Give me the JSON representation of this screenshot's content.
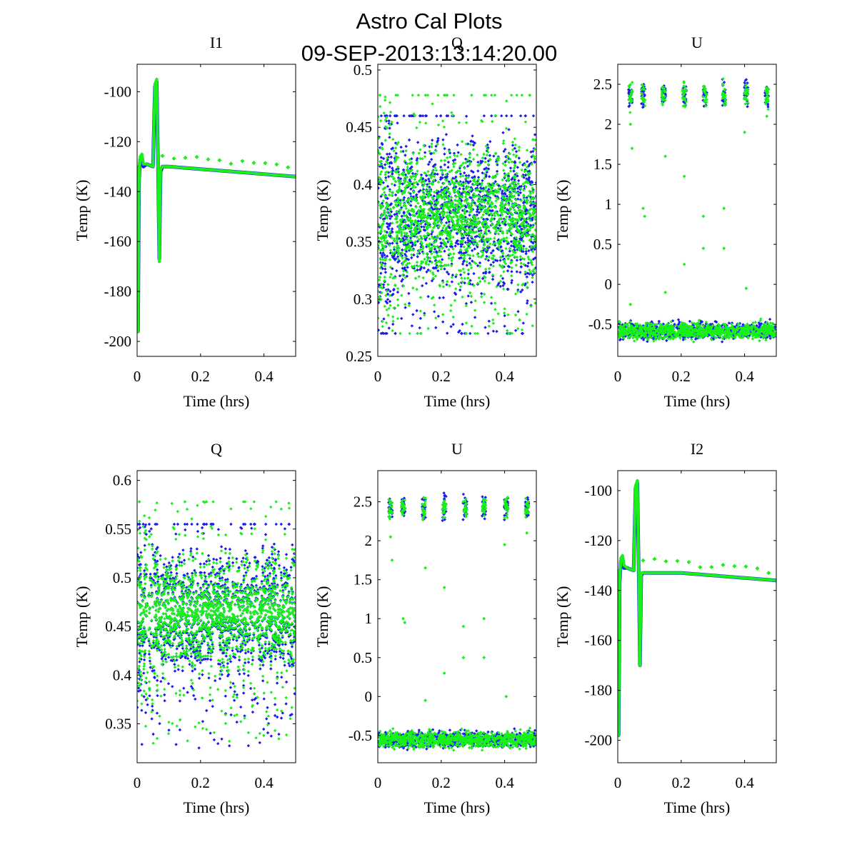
{
  "figure": {
    "title_line1": "Astro Cal Plots",
    "title_line2": "09-SEP-2013:13:14:20.00"
  },
  "colors": {
    "series_a": "#1b1bf0",
    "series_b": "#19f019",
    "axes": "#000000",
    "background": "#ffffff"
  },
  "chart_data": [
    {
      "id": "I1",
      "type": "scatter",
      "title": "I1",
      "xlabel": "Time (hrs)",
      "ylabel": "Temp (K)",
      "xlim": [
        0,
        0.5
      ],
      "ylim": [
        -206,
        -89
      ],
      "xticks": [
        0,
        0.2,
        0.4
      ],
      "xtick_labels": [
        "0",
        "0.2",
        "0.4"
      ],
      "yticks": [
        -200,
        -180,
        -160,
        -140,
        -120,
        -100
      ],
      "ytick_labels": [
        "-200",
        "-180",
        "-160",
        "-140",
        "-120",
        "-100"
      ],
      "grid": false,
      "kind": "thermal",
      "series": [
        {
          "color": "#1b1bf0",
          "x": [
            0.0,
            0.003,
            0.006,
            0.01,
            0.015,
            0.02,
            0.03,
            0.05,
            0.056,
            0.062,
            0.066,
            0.07,
            0.074,
            0.08,
            0.1,
            0.2,
            0.3,
            0.4,
            0.5
          ],
          "y": [
            -130,
            -196,
            -135,
            -127,
            -126,
            -130,
            -129,
            -130,
            -98,
            -96,
            -130,
            -167,
            -132,
            -130,
            -130,
            -131,
            -132,
            -133,
            -134
          ]
        },
        {
          "color": "#19f019",
          "x": [
            0.0,
            0.003,
            0.006,
            0.01,
            0.015,
            0.02,
            0.03,
            0.05,
            0.056,
            0.062,
            0.066,
            0.07,
            0.074,
            0.08,
            0.1,
            0.2,
            0.3,
            0.4,
            0.5
          ],
          "y": [
            -130,
            -196,
            -135,
            -126,
            -125,
            -129,
            -129,
            -130,
            -97,
            -95,
            -130,
            -168,
            -131,
            -130,
            -130,
            -131,
            -132,
            -133,
            -134
          ]
        }
      ]
    },
    {
      "id": "Q-top",
      "type": "scatter",
      "title": "Q",
      "xlabel": "Time (hrs)",
      "ylabel": "Temp (K)",
      "xlim": [
        0,
        0.5
      ],
      "ylim": [
        0.25,
        0.505
      ],
      "xticks": [
        0,
        0.2,
        0.4
      ],
      "xtick_labels": [
        "0",
        "0.2",
        "0.4"
      ],
      "yticks": [
        0.25,
        0.3,
        0.35,
        0.4,
        0.45,
        0.5
      ],
      "ytick_labels": [
        "0.25",
        "0.3",
        "0.35",
        "0.4",
        "0.45",
        "0.5"
      ],
      "grid": false,
      "kind": "noise",
      "series": [
        {
          "color": "#1b1bf0",
          "center": 0.375,
          "spread": 0.03,
          "min": 0.27,
          "max": 0.46
        },
        {
          "color": "#19f019",
          "center": 0.375,
          "spread": 0.028,
          "min": 0.27,
          "max": 0.478
        }
      ]
    },
    {
      "id": "U-top",
      "type": "scatter",
      "title": "U",
      "xlabel": "Time (hrs)",
      "ylabel": "Temp (K)",
      "xlim": [
        0,
        0.5
      ],
      "ylim": [
        -0.9,
        2.75
      ],
      "xticks": [
        0,
        0.2,
        0.4
      ],
      "xtick_labels": [
        "0",
        "0.2",
        "0.4"
      ],
      "yticks": [
        -0.5,
        0,
        0.5,
        1,
        1.5,
        2,
        2.5
      ],
      "ytick_labels": [
        "-0.5",
        "0",
        "0.5",
        "1",
        "1.5",
        "2",
        "2.5"
      ],
      "grid": false,
      "kind": "bimodal",
      "baseline": -0.58,
      "cluster_x": [
        0.04,
        0.08,
        0.145,
        0.21,
        0.275,
        0.335,
        0.405,
        0.47
      ],
      "cluster_y": 2.37,
      "outliers_x": [
        0.04,
        0.045,
        0.08,
        0.085,
        0.15,
        0.15,
        0.21,
        0.21,
        0.27,
        0.27,
        0.335,
        0.335,
        0.4,
        0.405,
        0.47,
        0.04
      ],
      "outliers_y": [
        2.0,
        1.7,
        0.95,
        0.85,
        1.6,
        -0.1,
        1.35,
        0.25,
        0.85,
        0.45,
        0.95,
        0.45,
        1.9,
        -0.05,
        2.1,
        -0.25
      ],
      "series": [
        {
          "color": "#1b1bf0"
        },
        {
          "color": "#19f019"
        }
      ]
    },
    {
      "id": "Q-bottom",
      "type": "scatter",
      "title": "Q",
      "xlabel": "Time (hrs)",
      "ylabel": "Temp (K)",
      "xlim": [
        0,
        0.5
      ],
      "ylim": [
        0.31,
        0.61
      ],
      "xticks": [
        0,
        0.2,
        0.4
      ],
      "xtick_labels": [
        "0",
        "0.2",
        "0.4"
      ],
      "yticks": [
        0.35,
        0.4,
        0.45,
        0.5,
        0.55,
        0.6
      ],
      "ytick_labels": [
        "0.35",
        "0.4",
        "0.45",
        "0.5",
        "0.55",
        "0.6"
      ],
      "grid": false,
      "kind": "noise",
      "series": [
        {
          "color": "#1b1bf0",
          "center": 0.465,
          "spread": 0.03,
          "min": 0.325,
          "max": 0.555
        },
        {
          "color": "#19f019",
          "center": 0.465,
          "spread": 0.028,
          "min": 0.33,
          "max": 0.578
        }
      ]
    },
    {
      "id": "U-bottom",
      "type": "scatter",
      "title": "U",
      "xlabel": "Time (hrs)",
      "ylabel": "Temp (K)",
      "xlim": [
        0,
        0.5
      ],
      "ylim": [
        -0.85,
        2.9
      ],
      "xticks": [
        0,
        0.2,
        0.4
      ],
      "xtick_labels": [
        "0",
        "0.2",
        "0.4"
      ],
      "yticks": [
        -0.5,
        0,
        0.5,
        1,
        1.5,
        2,
        2.5
      ],
      "ytick_labels": [
        "-0.5",
        "0",
        "0.5",
        "1",
        "1.5",
        "2",
        "2.5"
      ],
      "grid": false,
      "kind": "bimodal",
      "baseline": -0.55,
      "cluster_x": [
        0.04,
        0.08,
        0.145,
        0.21,
        0.275,
        0.335,
        0.405,
        0.47
      ],
      "cluster_y": 2.42,
      "outliers_x": [
        0.04,
        0.045,
        0.08,
        0.085,
        0.15,
        0.15,
        0.21,
        0.21,
        0.27,
        0.27,
        0.335,
        0.335,
        0.4,
        0.405,
        0.47
      ],
      "outliers_y": [
        2.05,
        1.75,
        1.0,
        0.95,
        1.65,
        -0.05,
        1.4,
        0.3,
        0.9,
        0.5,
        1.0,
        0.5,
        1.95,
        0.0,
        2.1
      ],
      "series": [
        {
          "color": "#1b1bf0"
        },
        {
          "color": "#19f019"
        }
      ]
    },
    {
      "id": "I2",
      "type": "scatter",
      "title": "I2",
      "xlabel": "Time (hrs)",
      "ylabel": "Temp (K)",
      "xlim": [
        0,
        0.5
      ],
      "ylim": [
        -209,
        -92
      ],
      "xticks": [
        0,
        0.2,
        0.4
      ],
      "xtick_labels": [
        "0",
        "0.2",
        "0.4"
      ],
      "yticks": [
        -200,
        -180,
        -160,
        -140,
        -120,
        -100
      ],
      "ytick_labels": [
        "-200",
        "-180",
        "-160",
        "-140",
        "-120",
        "-100"
      ],
      "grid": false,
      "kind": "thermal",
      "series": [
        {
          "color": "#1b1bf0",
          "x": [
            0.0,
            0.003,
            0.006,
            0.01,
            0.015,
            0.02,
            0.03,
            0.05,
            0.056,
            0.062,
            0.066,
            0.07,
            0.074,
            0.08,
            0.1,
            0.2,
            0.3,
            0.4,
            0.5
          ],
          "y": [
            -132,
            -198,
            -137,
            -128,
            -127,
            -131,
            -131,
            -132,
            -99,
            -97,
            -132,
            -170,
            -134,
            -133,
            -133,
            -133,
            -134,
            -135,
            -136
          ]
        },
        {
          "color": "#19f019",
          "x": [
            0.0,
            0.003,
            0.006,
            0.01,
            0.015,
            0.02,
            0.03,
            0.05,
            0.056,
            0.062,
            0.066,
            0.07,
            0.074,
            0.08,
            0.1,
            0.2,
            0.3,
            0.4,
            0.5
          ],
          "y": [
            -132,
            -198,
            -137,
            -127,
            -126,
            -130,
            -131,
            -132,
            -98,
            -96,
            -132,
            -170,
            -133,
            -133,
            -133,
            -133,
            -134,
            -135,
            -136
          ]
        }
      ]
    }
  ]
}
